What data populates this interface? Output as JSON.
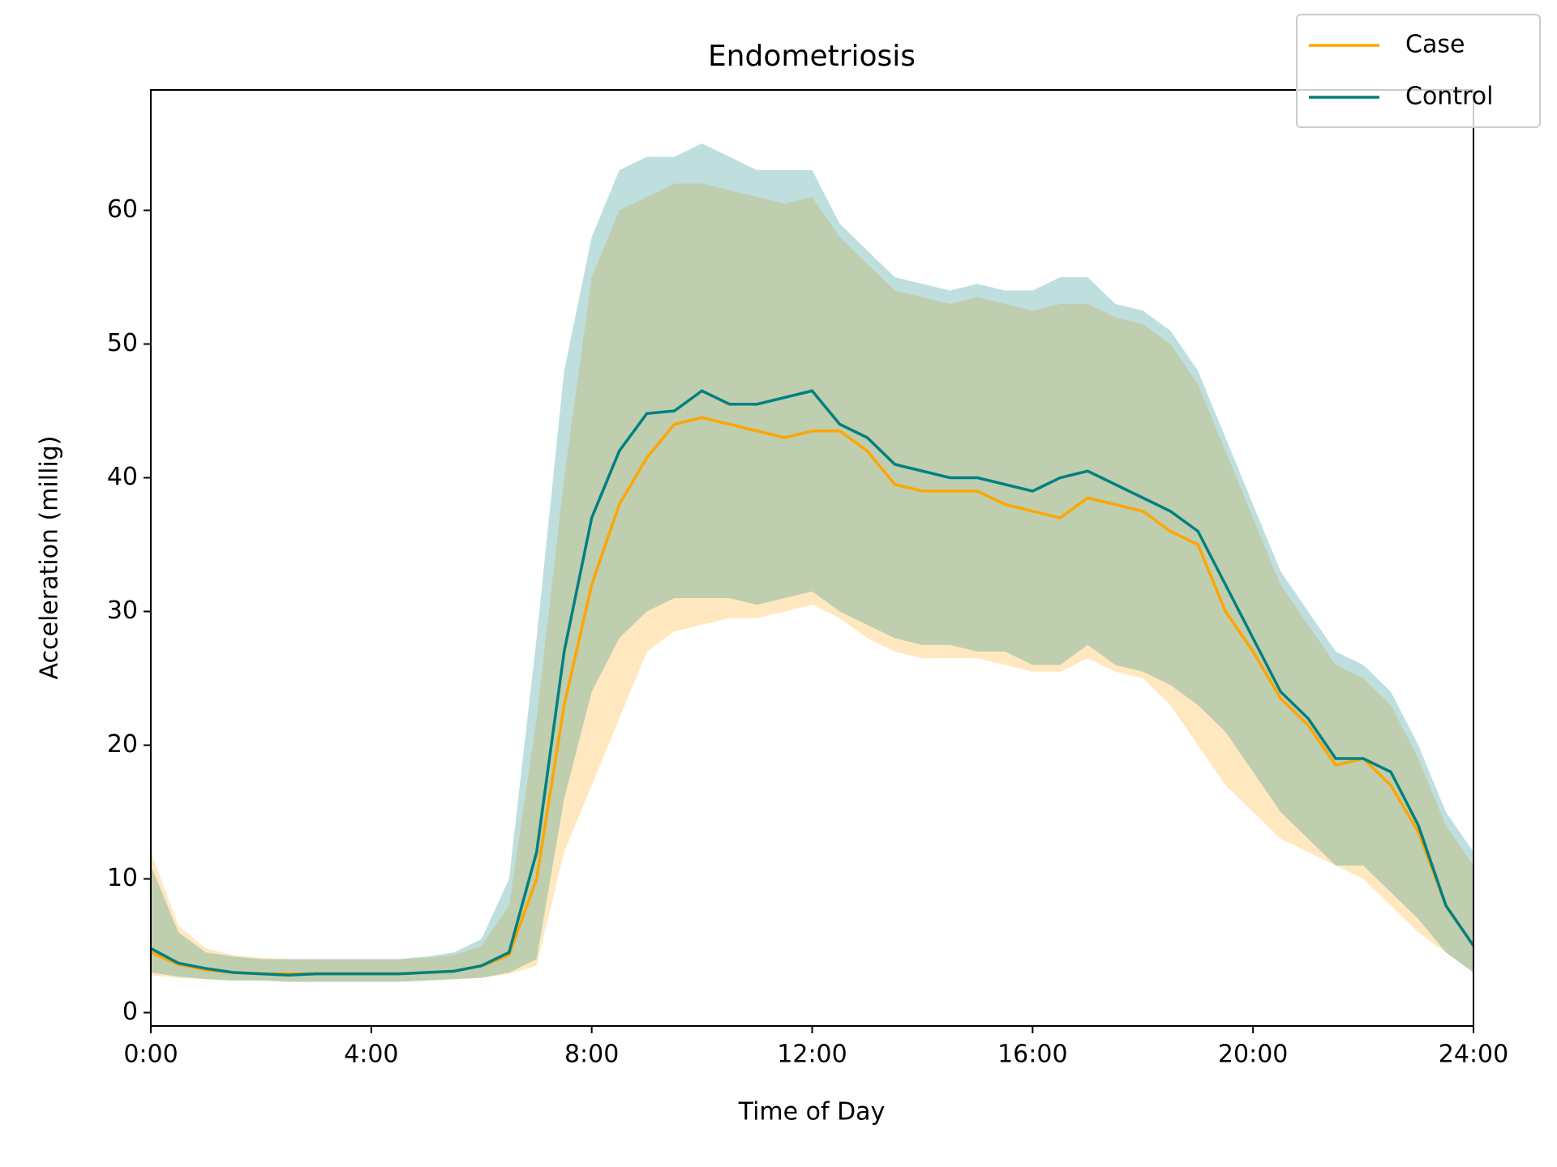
{
  "chart_data": {
    "type": "line",
    "title": "Endometriosis",
    "xlabel": "Time of Day",
    "ylabel": "Acceleration (millig)",
    "xlim": [
      0,
      24
    ],
    "ylim": [
      -1,
      69
    ],
    "xticks": [
      {
        "value": 0,
        "label": "0:00"
      },
      {
        "value": 4,
        "label": "4:00"
      },
      {
        "value": 8,
        "label": "8:00"
      },
      {
        "value": 12,
        "label": "12:00"
      },
      {
        "value": 16,
        "label": "16:00"
      },
      {
        "value": 20,
        "label": "20:00"
      },
      {
        "value": 24,
        "label": "24:00"
      }
    ],
    "yticks": [
      0,
      10,
      20,
      30,
      40,
      50,
      60
    ],
    "legend": "upper right",
    "x": [
      0,
      0.5,
      1,
      1.5,
      2,
      2.5,
      3,
      3.5,
      4,
      4.5,
      5,
      5.5,
      6,
      6.5,
      7,
      7.5,
      8,
      8.5,
      9,
      9.5,
      10,
      10.5,
      11,
      11.5,
      12,
      12.5,
      13,
      13.5,
      14,
      14.5,
      15,
      15.5,
      16,
      16.5,
      17,
      17.5,
      18,
      18.5,
      19,
      19.5,
      20,
      20.5,
      21,
      21.5,
      22,
      22.5,
      23,
      23.5,
      24
    ],
    "series": [
      {
        "name": "Case",
        "color": "#ffa500",
        "values": [
          4.5,
          3.6,
          3.2,
          3.0,
          2.9,
          2.9,
          2.9,
          2.9,
          2.9,
          2.9,
          3.0,
          3.1,
          3.5,
          4.3,
          10,
          23,
          32,
          38,
          41.5,
          44,
          44.5,
          44,
          43.5,
          43,
          43.5,
          43.5,
          42,
          39.5,
          39,
          39,
          39,
          38,
          37.5,
          37,
          38.5,
          38,
          37.5,
          36,
          35,
          30,
          27,
          23.5,
          21.5,
          18.5,
          19,
          17,
          13.5,
          8,
          5
        ],
        "upper": [
          12,
          6.5,
          4.8,
          4.3,
          4.1,
          4,
          4,
          4,
          4,
          4,
          4.1,
          4.3,
          5,
          8,
          22,
          40,
          55,
          60,
          61,
          62,
          62,
          61.5,
          61,
          60.5,
          61,
          58,
          56,
          54,
          53.5,
          53,
          53.5,
          53,
          52.5,
          53,
          53,
          52,
          51.5,
          50,
          47,
          42,
          37,
          32,
          29,
          26,
          25,
          23,
          19,
          14,
          11
        ],
        "lower": [
          2.8,
          2.6,
          2.5,
          2.4,
          2.4,
          2.3,
          2.3,
          2.3,
          2.3,
          2.3,
          2.4,
          2.5,
          2.6,
          2.9,
          3.5,
          12,
          17,
          22,
          27,
          28.5,
          29,
          29.5,
          29.5,
          30,
          30.5,
          29.5,
          28,
          27,
          26.5,
          26.5,
          26.5,
          26,
          25.5,
          25.5,
          26.5,
          25.5,
          25,
          23,
          20,
          17,
          15,
          13,
          12,
          11,
          10,
          8,
          6,
          4.5,
          3
        ]
      },
      {
        "name": "Control",
        "color": "#008080",
        "values": [
          4.8,
          3.7,
          3.3,
          3.0,
          2.9,
          2.8,
          2.9,
          2.9,
          2.9,
          2.9,
          3.0,
          3.1,
          3.5,
          4.5,
          12,
          27,
          37,
          42,
          44.8,
          45,
          46.5,
          45.5,
          45.5,
          46,
          46.5,
          44,
          43,
          41,
          40.5,
          40,
          40,
          39.5,
          39,
          40,
          40.5,
          39.5,
          38.5,
          37.5,
          36,
          32,
          28,
          24,
          22,
          19,
          19,
          18,
          14,
          8,
          5
        ],
        "upper": [
          11,
          6,
          4.5,
          4.2,
          4,
          4,
          4,
          4,
          4,
          4,
          4.2,
          4.5,
          5.5,
          10,
          28,
          48,
          58,
          63,
          64,
          64,
          65,
          64,
          63,
          63,
          63,
          59,
          57,
          55,
          54.5,
          54,
          54.5,
          54,
          54,
          55,
          55,
          53,
          52.5,
          51,
          48,
          43,
          38,
          33,
          30,
          27,
          26,
          24,
          20,
          15,
          12
        ],
        "lower": [
          3,
          2.7,
          2.5,
          2.4,
          2.4,
          2.3,
          2.3,
          2.3,
          2.3,
          2.3,
          2.4,
          2.5,
          2.6,
          3,
          4,
          16,
          24,
          28,
          30,
          31,
          31,
          31,
          30.5,
          31,
          31.5,
          30,
          29,
          28,
          27.5,
          27.5,
          27,
          27,
          26,
          26,
          27.5,
          26,
          25.5,
          24.5,
          23,
          21,
          18,
          15,
          13,
          11,
          11,
          9,
          7,
          4.5,
          3
        ]
      }
    ]
  }
}
